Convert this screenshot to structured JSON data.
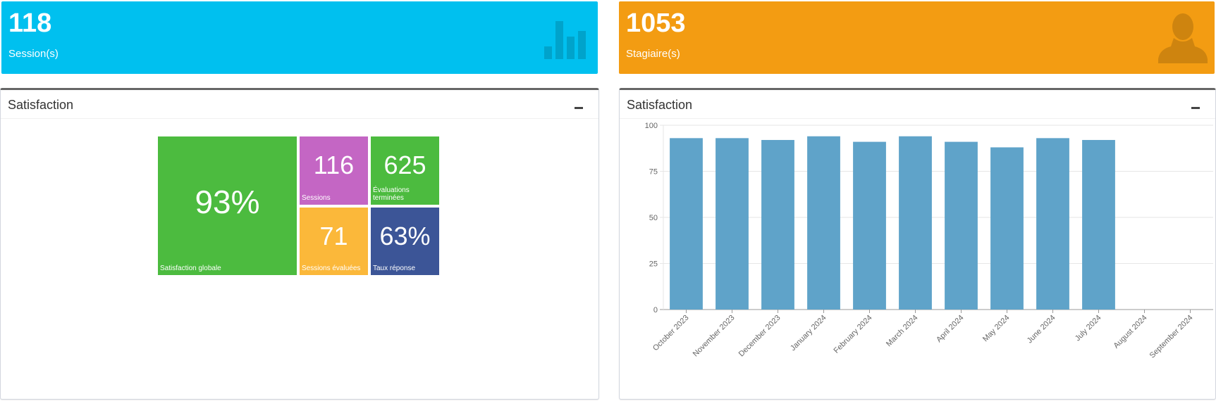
{
  "stats": {
    "sessions": {
      "value": "118",
      "label": "Session(s)"
    },
    "trainees": {
      "value": "1053",
      "label": "Stagiaire(s)"
    }
  },
  "panels": {
    "left": {
      "title": "Satisfaction"
    },
    "right": {
      "title": "Satisfaction"
    }
  },
  "treemap": {
    "global": {
      "value": "93%",
      "label": "Satisfaction globale"
    },
    "sessions": {
      "value": "116",
      "label": "Sessions"
    },
    "evaluations": {
      "value": "625",
      "label": "Évaluations terminées"
    },
    "evaluated": {
      "value": "71",
      "label": "Sessions évaluées"
    },
    "rate": {
      "value": "63%",
      "label": "Taux réponse"
    }
  },
  "colors": {
    "aqua": "#00c0ef",
    "orange": "#f39c12",
    "green": "#4cbb3f",
    "purple": "#c466c4",
    "yellow": "#fbb83a",
    "navy": "#3c5597",
    "bar": "#5fa3c9"
  },
  "chart_data": {
    "type": "bar",
    "title": "Satisfaction",
    "categories": [
      "October 2023",
      "November 2023",
      "December 2023",
      "January 2024",
      "February 2024",
      "March 2024",
      "April 2024",
      "May 2024",
      "June 2024",
      "July 2024",
      "August 2024",
      "September 2024"
    ],
    "values": [
      93,
      93,
      92,
      94,
      91,
      94,
      91,
      88,
      93,
      92,
      null,
      null
    ],
    "yticks": [
      0,
      25,
      50,
      75,
      100
    ],
    "ylim": [
      0,
      100
    ],
    "xlabel": "",
    "ylabel": "",
    "grid": true
  }
}
